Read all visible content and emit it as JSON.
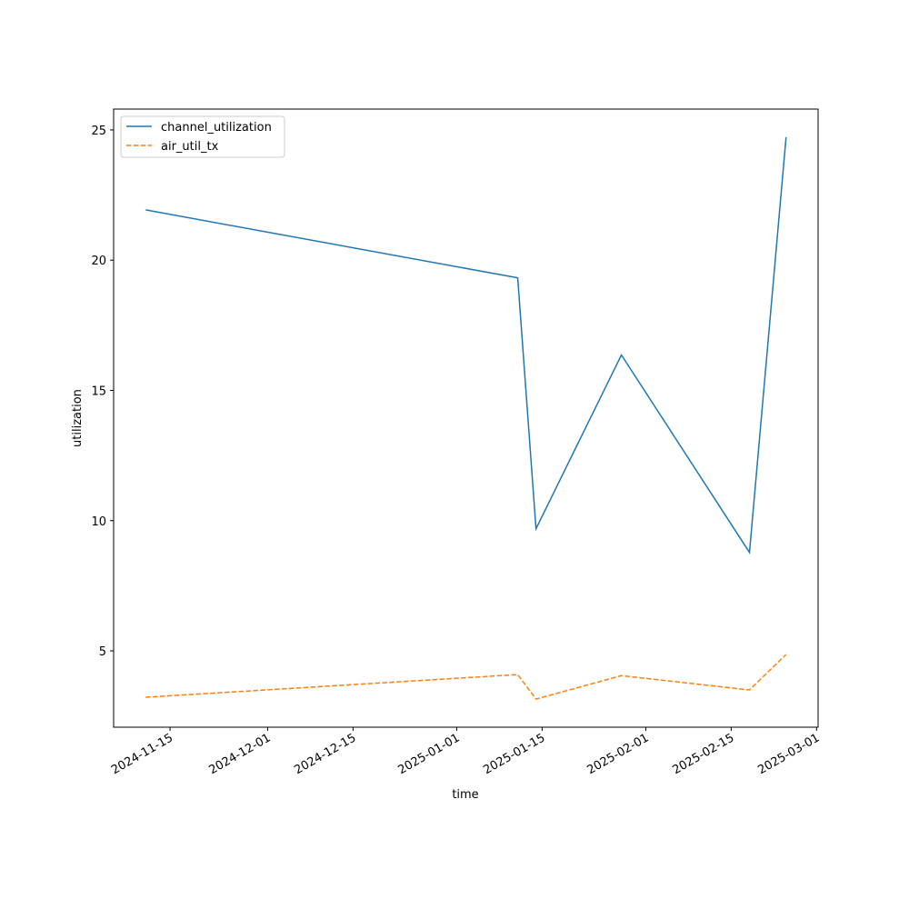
{
  "chart_data": {
    "type": "line",
    "x_label": "time",
    "y_label": "utilization",
    "x": [
      "2024-11-11",
      "2025-01-11",
      "2025-01-14",
      "2025-01-28",
      "2025-02-18",
      "2025-02-24"
    ],
    "series": [
      {
        "name": "channel_utilization",
        "color": "#1f77b4",
        "dash": "solid",
        "values": [
          21.93,
          19.32,
          9.69,
          16.36,
          8.78,
          24.72
        ]
      },
      {
        "name": "air_util_tx",
        "color": "#ff7f0e",
        "dash": "dashed",
        "values": [
          3.22,
          4.09,
          3.15,
          4.05,
          3.5,
          4.86
        ]
      }
    ],
    "xlim": [
      "2024-11-05T18:00",
      "2025-03-01T06:00"
    ],
    "xticks": [
      "2024-11-15",
      "2024-12-01",
      "2024-12-15",
      "2025-01-01",
      "2025-01-15",
      "2025-02-01",
      "2025-02-15",
      "2025-03-01"
    ],
    "ylim": [
      2.07,
      25.8
    ],
    "yticks": [
      5,
      10,
      15,
      20,
      25
    ],
    "legend": "upper left"
  }
}
